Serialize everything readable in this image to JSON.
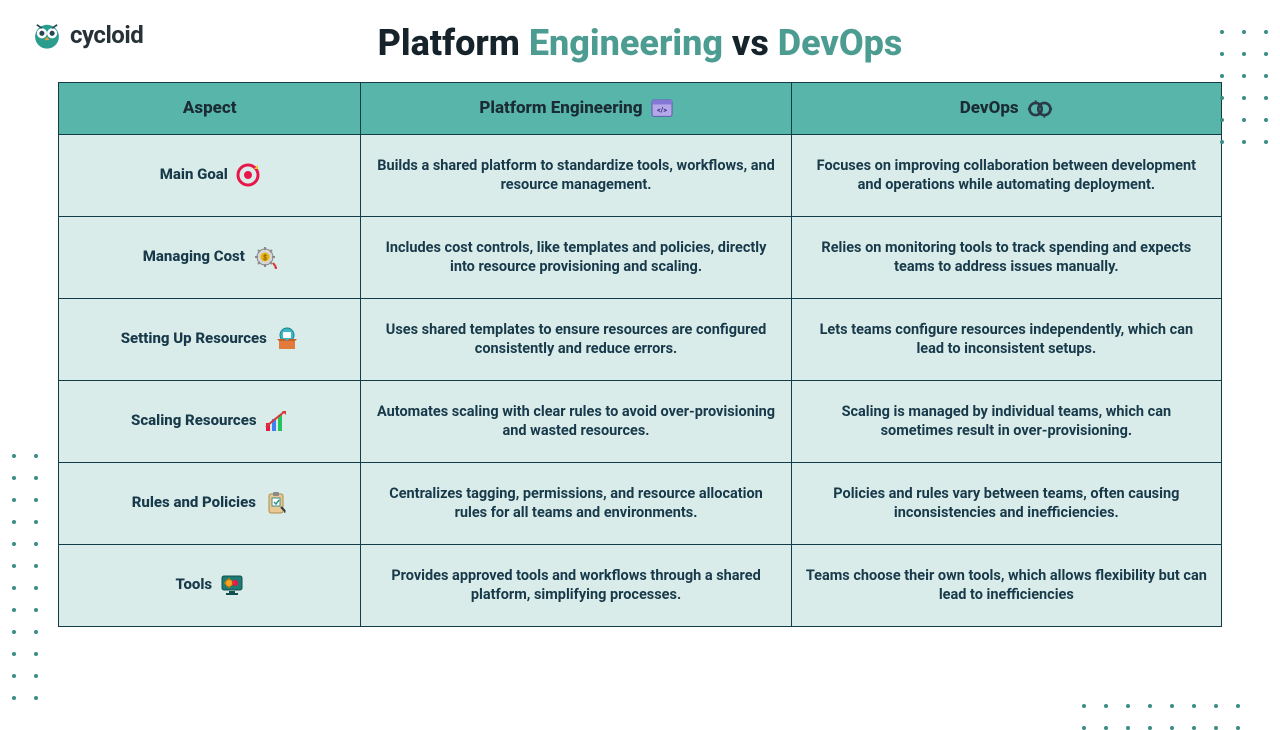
{
  "logo": {
    "brand": "cycloid",
    "text_color": "#263238"
  },
  "title": {
    "p1": "Platform ",
    "p2": "Engineering",
    "p3": " vs ",
    "p4": "DevOps",
    "color_main": "#16232a",
    "color_accent": "#4c9c92"
  },
  "colors": {
    "header_bg": "#58b5a9",
    "cell_bg": "#d9ecea",
    "border": "#123c47",
    "text": "#18394a",
    "dot": "#3a8e86"
  },
  "table": {
    "headers": [
      "Aspect",
      "Platform Engineering",
      "DevOps"
    ],
    "rows": [
      {
        "aspect": "Main Goal",
        "icon": "target-icon",
        "pe": "Builds a shared platform to standardize tools, workflows, and resource management.",
        "do": "Focuses on improving collaboration between development and operations while automating deployment."
      },
      {
        "aspect": "Managing Cost",
        "icon": "cost-gear-icon",
        "pe": "Includes cost controls, like templates and policies, directly into resource provisioning and scaling.",
        "do": "Relies on monitoring tools to track spending and expects teams to address issues manually."
      },
      {
        "aspect": "Setting Up Resources",
        "icon": "resource-box-icon",
        "pe": "Uses shared templates to ensure resources are configured consistently and reduce errors.",
        "do": "Lets teams configure resources independently, which can lead to inconsistent setups."
      },
      {
        "aspect": "Scaling Resources",
        "icon": "scaling-chart-icon",
        "pe": "Automates scaling with clear rules to avoid over-provisioning and wasted resources.",
        "do": "Scaling is managed by individual teams, which can sometimes result in over-provisioning."
      },
      {
        "aspect": "Rules and Policies",
        "icon": "policy-clipboard-icon",
        "pe": "Centralizes tagging, permissions, and resource allocation rules for all teams and environments.",
        "do": "Policies and rules vary between teams, often causing inconsistencies and inefficiencies."
      },
      {
        "aspect": "Tools",
        "icon": "tools-monitor-icon",
        "pe": "Provides approved tools and workflows through a shared platform, simplifying processes.",
        "do": "Teams choose their own tools, which allows flexibility but can lead to inefficiencies"
      }
    ]
  }
}
